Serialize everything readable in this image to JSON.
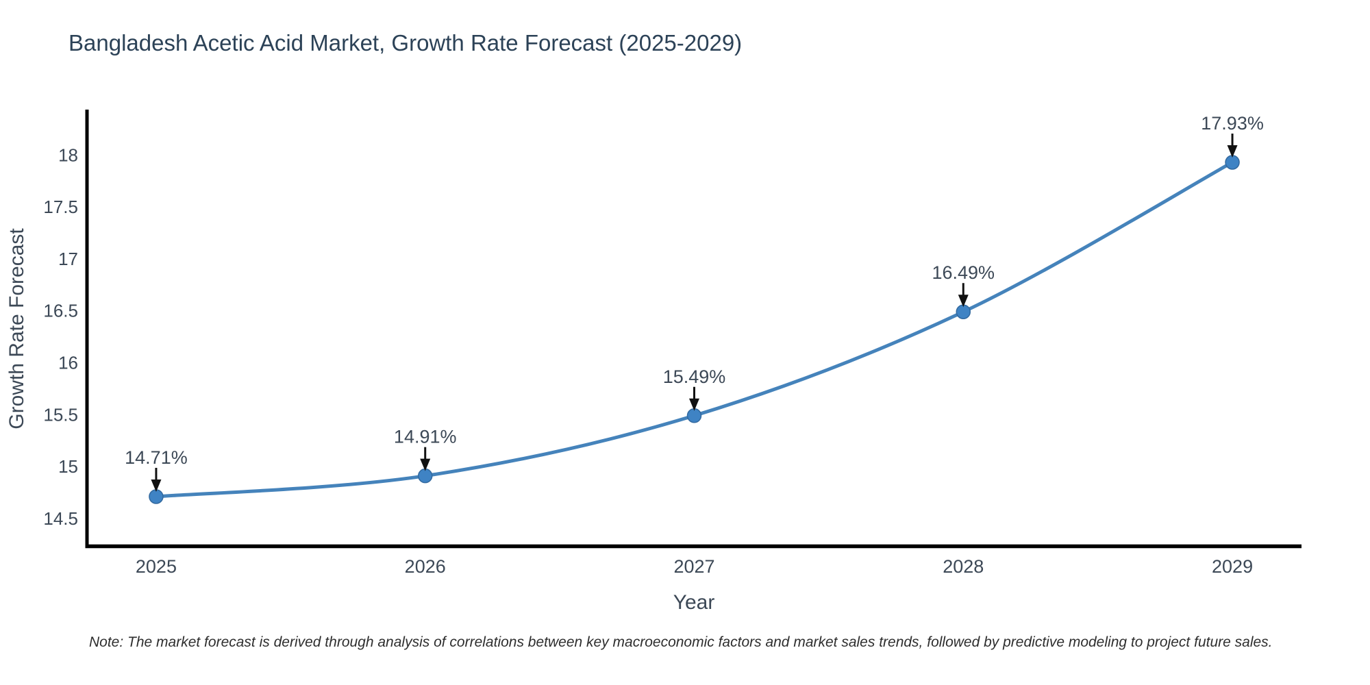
{
  "chart_data": {
    "type": "line",
    "title": "Bangladesh Acetic Acid Market, Growth Rate Forecast (2025-2029)",
    "xlabel": "Year",
    "ylabel": "Growth Rate Forecast",
    "x": [
      2025,
      2026,
      2027,
      2028,
      2029
    ],
    "series": [
      {
        "name": "Growth Rate Forecast",
        "values": [
          14.71,
          14.91,
          15.49,
          16.49,
          17.93
        ],
        "labels": [
          "14.71%",
          "14.91%",
          "15.49%",
          "16.49%",
          "17.93%"
        ]
      }
    ],
    "yticks": [
      14.5,
      15,
      15.5,
      16,
      16.5,
      17,
      17.5,
      18
    ],
    "ylim": [
      14.215,
      18.438
    ],
    "xlim": [
      2024.743,
      2029.257
    ],
    "line_shape": "spline",
    "marker": "circle",
    "annotation_arrows": true,
    "grid": false,
    "legend": "none",
    "colors": {
      "line": "#4583bb",
      "marker": "#3f83c4",
      "marker_edge": "#32699f",
      "axis": "#000000",
      "title_text": "#2c4257",
      "tick_text": "#3c4856",
      "annotation_text": "#3c4856",
      "arrow": "#111111",
      "note_text": "#2e2e2e"
    }
  },
  "note": "Note: The market forecast is derived through analysis of correlations between key macroeconomic factors and market sales trends, followed by predictive modeling to project future sales."
}
